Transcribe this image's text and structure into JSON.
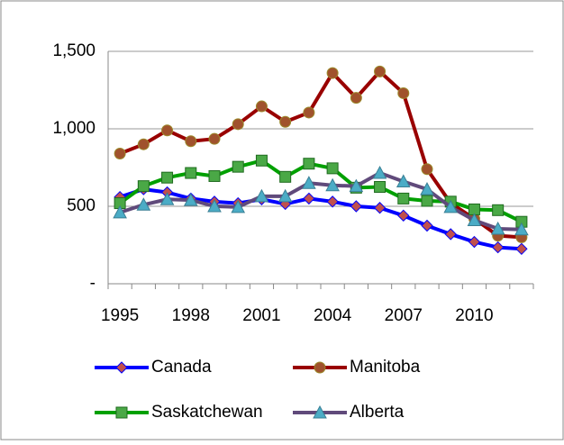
{
  "chart_data": {
    "type": "line",
    "categories": [
      "1995",
      null,
      null,
      "1998",
      null,
      null,
      "2001",
      null,
      null,
      "2004",
      null,
      null,
      "2007",
      null,
      null,
      "2010",
      null,
      null
    ],
    "series": [
      {
        "name": "Canada",
        "color": "#0000ff",
        "marker": "diamond",
        "marker_color": "#c0504d",
        "values": [
          560,
          610,
          590,
          550,
          530,
          520,
          545,
          515,
          550,
          530,
          500,
          490,
          440,
          375,
          320,
          270,
          235,
          225
        ]
      },
      {
        "name": "Manitoba",
        "color": "#990000",
        "marker": "circle",
        "marker_color": "#a0522d",
        "values": [
          840,
          900,
          990,
          920,
          935,
          1030,
          1145,
          1045,
          1105,
          1360,
          1200,
          1370,
          1230,
          740,
          520,
          420,
          310,
          300
        ]
      },
      {
        "name": "Saskatchewan",
        "color": "#00a000",
        "marker": "square",
        "marker_color": "#4aa846",
        "values": [
          520,
          630,
          685,
          715,
          695,
          755,
          795,
          690,
          775,
          745,
          620,
          625,
          550,
          535,
          530,
          480,
          475,
          400
        ]
      },
      {
        "name": "Alberta",
        "color": "#604a7b",
        "marker": "triangle",
        "marker_color": "#4bacc6",
        "values": [
          460,
          510,
          545,
          540,
          500,
          495,
          565,
          565,
          650,
          635,
          630,
          715,
          660,
          610,
          495,
          410,
          355,
          350
        ]
      }
    ],
    "ylim": [
      0,
      1500
    ],
    "yticks": [
      {
        "value": 0,
        "label": "-"
      },
      500,
      {
        "value": 1000,
        "label": "1,000"
      },
      {
        "value": 1500,
        "label": "1,500"
      }
    ],
    "grid": true,
    "legend": "bottom"
  }
}
